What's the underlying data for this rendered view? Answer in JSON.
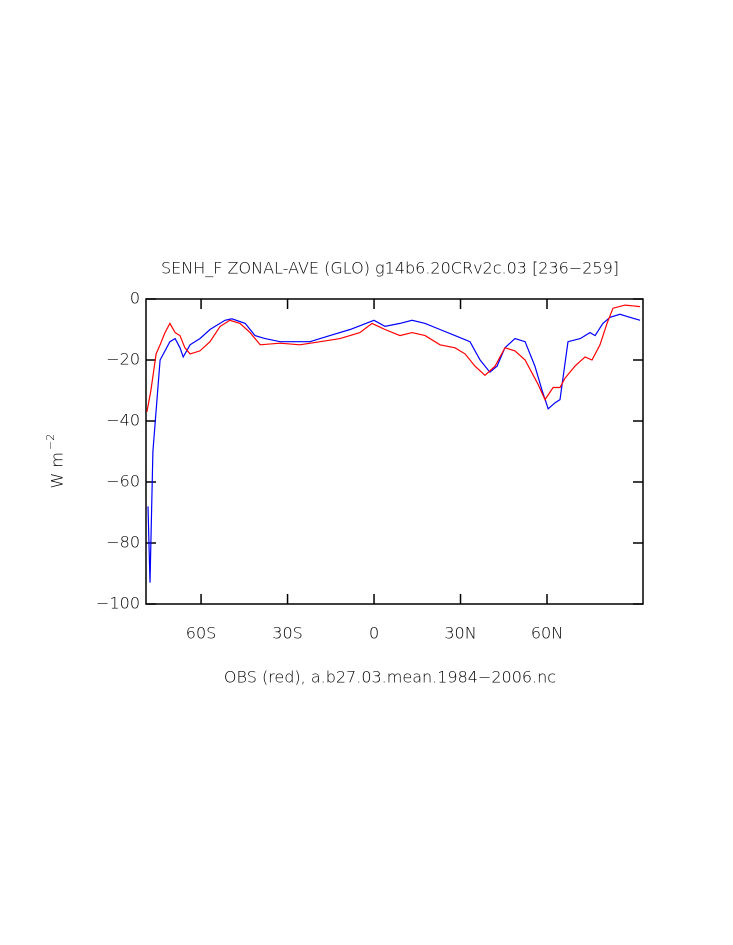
{
  "chart_data": {
    "type": "line",
    "title": "SENH_F ZONAL-AVE (GLO) g14b6.20CRv2c.03 [236−259]",
    "xlabel": "OBS (red), a.b27.03.mean.1984−2006.nc",
    "ylabel": {
      "text": "W m",
      "sup": "−2"
    },
    "xlim": [
      -79.1,
      93.3
    ],
    "ylim": [
      -100,
      0
    ],
    "xticks": [
      {
        "value": -60,
        "label": "60S"
      },
      {
        "value": -30,
        "label": "30S"
      },
      0,
      {
        "value": 30,
        "label": "30N"
      },
      {
        "value": 60,
        "label": "60N"
      }
    ],
    "yticks": [
      0,
      {
        "value": -20,
        "label": "−20"
      },
      {
        "value": -40,
        "label": "−40"
      },
      {
        "value": -60,
        "label": "−60"
      },
      {
        "value": -80,
        "label": "−80"
      },
      {
        "value": -100,
        "label": "−100"
      }
    ],
    "series": [
      {
        "color": "#0000ff",
        "x": [
          -78.4,
          -77.7,
          -76.7,
          -74.2,
          -70.8,
          -69,
          -67.3,
          -66.2,
          -63.8,
          -60.4,
          -56.9,
          -51.7,
          -49.3,
          -44.7,
          -41.3,
          -37.8,
          -32.6,
          -25.7,
          -22.2,
          -15.3,
          -8.3,
          0,
          3.8,
          9,
          13.2,
          17.7,
          22.9,
          28.1,
          33.3,
          36.8,
          40.2,
          42.7,
          45.4,
          48.9,
          52.4,
          55.8,
          58.3,
          60.4,
          62.8,
          64.5,
          67.3,
          71.5,
          74.9,
          76.7,
          79.4,
          81.9,
          85.3,
          88.8,
          92.3
        ],
        "values": [
          -68,
          -93,
          -50,
          -20,
          -14,
          -13,
          -16,
          -19,
          -15,
          -13,
          -10,
          -7,
          -6.5,
          -8,
          -12,
          -13,
          -14,
          -14,
          -14,
          -12,
          -10,
          -7,
          -9,
          -8,
          -7,
          -8,
          -10,
          -12,
          -14,
          -20,
          -24,
          -22,
          -16,
          -13,
          -14,
          -22,
          -30,
          -36,
          -34,
          -33,
          -14,
          -13,
          -11,
          -12,
          -8,
          -6,
          -5,
          -6,
          -7
        ]
      },
      {
        "color": "#ff0000",
        "x": [
          -78.8,
          -77.4,
          -75.6,
          -74.2,
          -72.5,
          -70.8,
          -69,
          -67.3,
          -65.6,
          -63.8,
          -60.4,
          -56.9,
          -53.4,
          -50,
          -46.5,
          -43,
          -39.5,
          -32.6,
          -25.7,
          -18.7,
          -11.8,
          -4.9,
          -0.7,
          3.8,
          9,
          13.2,
          17.7,
          22.9,
          28.1,
          31.6,
          35,
          38.5,
          42,
          45.4,
          48.9,
          52.4,
          56.9,
          59.3,
          62.1,
          64.5,
          66.2,
          69.7,
          73.2,
          75.6,
          78.4,
          80.8,
          82.9,
          87.1,
          92.3
        ],
        "values": [
          -37,
          -30,
          -18,
          -15,
          -11,
          -8,
          -11,
          -12,
          -16,
          -18,
          -17,
          -14,
          -9,
          -7,
          -8,
          -11,
          -15,
          -14.5,
          -15,
          -14,
          -13,
          -11,
          -8,
          -10,
          -12,
          -11,
          -12,
          -15,
          -16,
          -18,
          -22,
          -25,
          -22,
          -16,
          -17,
          -20,
          -28,
          -33,
          -29,
          -29,
          -26,
          -22,
          -19,
          -20,
          -15,
          -8,
          -3,
          -2,
          -2.5
        ]
      }
    ]
  }
}
